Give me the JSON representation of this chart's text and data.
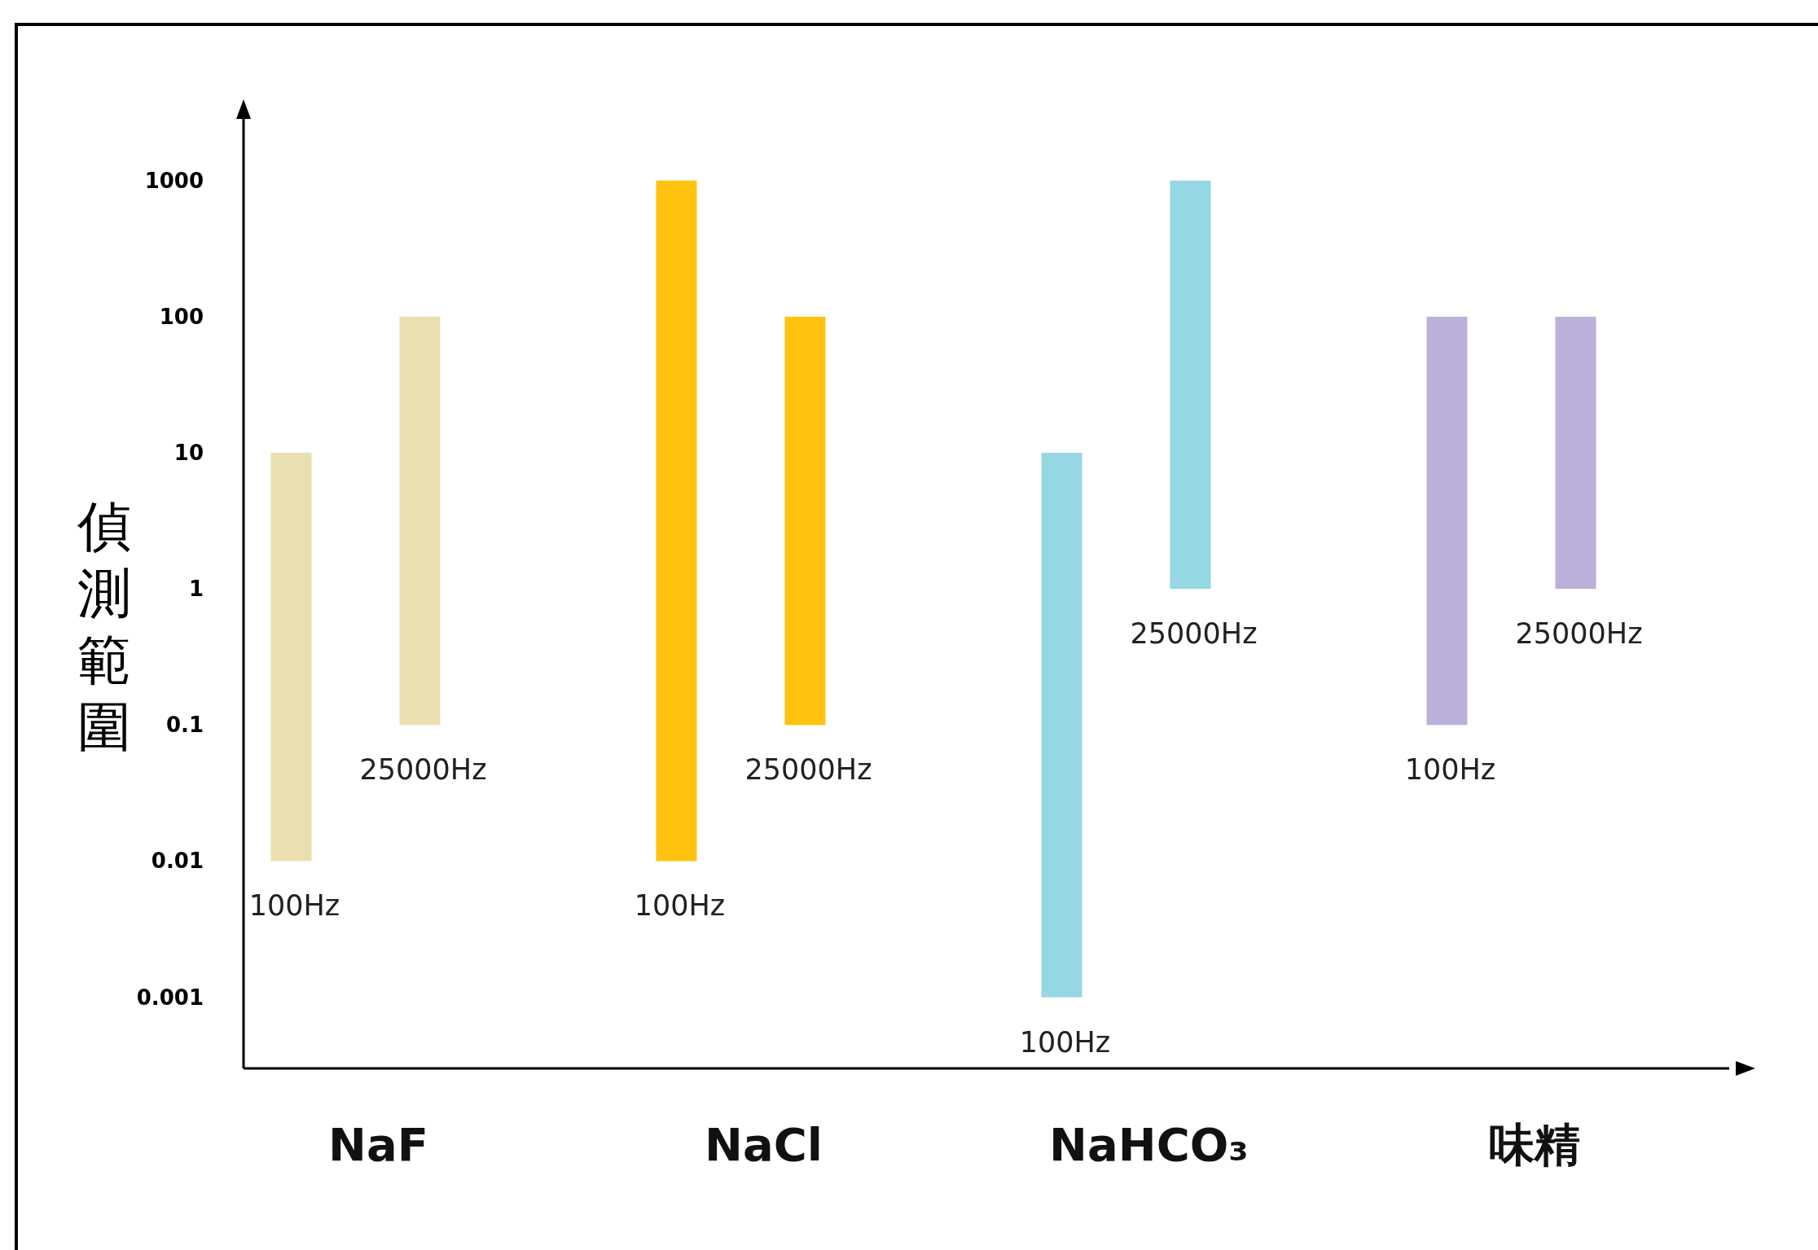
{
  "chart_data": {
    "type": "bar",
    "ylabel": "偵測範圍",
    "categories": [
      "NaF",
      "NaCl",
      "NaHCO₃",
      "味精"
    ],
    "log": "y",
    "ylim": [
      0.0003,
      3000
    ],
    "yticks": [
      0.001,
      0.01,
      0.1,
      1,
      10,
      100,
      1000
    ],
    "legend": false,
    "grid": false,
    "series": [
      {
        "name": "100Hz",
        "colors": [
          "#eadfb0",
          "#ffc20e",
          "#95d8e4",
          "#bcb0da"
        ],
        "base": [
          0.01,
          0.01,
          0.001,
          0.1
        ],
        "values": [
          9.99,
          999.99,
          9.999,
          99.9
        ]
      },
      {
        "name": "25000Hz",
        "colors": [
          "#eadfb0",
          "#ffc20e",
          "#95d8e4",
          "#bcb0da"
        ],
        "base": [
          0.1,
          0.1,
          1,
          1
        ],
        "values": [
          99.9,
          99.9,
          999,
          99
        ]
      }
    ]
  }
}
